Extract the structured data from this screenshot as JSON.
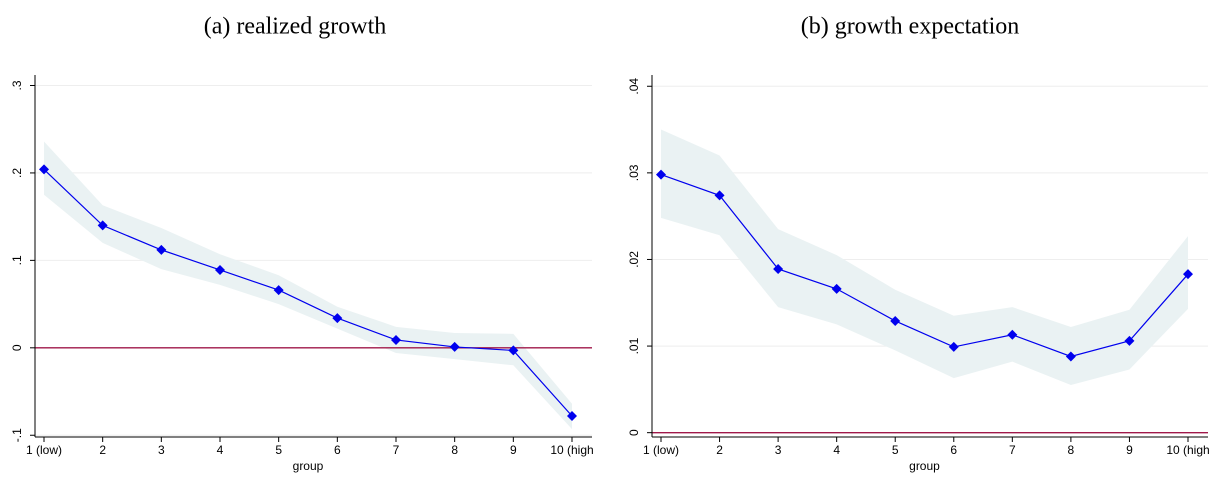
{
  "chart_data": [
    {
      "type": "line",
      "title": "(a) realized growth",
      "x_label": "group",
      "categories": [
        "1 (low)",
        "2",
        "3",
        "4",
        "5",
        "6",
        "7",
        "8",
        "9",
        "10 (high"
      ],
      "series": [
        {
          "color": "#0000ee",
          "values": [
            0.204,
            0.14,
            0.112,
            0.089,
            0.066,
            0.034,
            0.009,
            0.001,
            -0.003,
            -0.078
          ],
          "lower": [
            0.175,
            0.12,
            0.09,
            0.072,
            0.05,
            0.022,
            -0.006,
            -0.013,
            -0.02,
            -0.093
          ],
          "upper": [
            0.236,
            0.163,
            0.137,
            0.107,
            0.083,
            0.047,
            0.024,
            0.017,
            0.016,
            -0.064
          ],
          "band_color": "#eaf2f3"
        }
      ],
      "hline": 0,
      "hline_color": "#a0184a",
      "ylim": [
        -0.102,
        0.312
      ],
      "yticks": [
        {
          "value": -0.1,
          "label": "-.1"
        },
        0,
        {
          "value": 0.1,
          "label": ".1"
        },
        {
          "value": 0.2,
          "label": ".2"
        },
        {
          "value": 0.3,
          "label": ".3"
        }
      ],
      "grid": true
    },
    {
      "type": "line",
      "title": "(b) growth expectation",
      "x_label": "group",
      "categories": [
        "1 (low)",
        "2",
        "3",
        "4",
        "5",
        "6",
        "7",
        "8",
        "9",
        "10 (high"
      ],
      "series": [
        {
          "color": "#0000ee",
          "values": [
            0.0298,
            0.0274,
            0.0189,
            0.0166,
            0.0129,
            0.0099,
            0.0113,
            0.0088,
            0.0106,
            0.0183
          ],
          "lower": [
            0.0248,
            0.0228,
            0.0145,
            0.0125,
            0.0095,
            0.0063,
            0.0082,
            0.0055,
            0.0073,
            0.0143
          ],
          "upper": [
            0.035,
            0.032,
            0.0235,
            0.0205,
            0.0165,
            0.0135,
            0.0145,
            0.0122,
            0.0142,
            0.0227
          ],
          "band_color": "#eaf2f3"
        }
      ],
      "hline": 0,
      "hline_color": "#a0184a",
      "ylim": [
        -0.0005,
        0.0413
      ],
      "yticks": [
        0,
        {
          "value": 0.01,
          "label": ".01"
        },
        {
          "value": 0.02,
          "label": ".02"
        },
        {
          "value": 0.03,
          "label": ".03"
        },
        {
          "value": 0.04,
          "label": ".04"
        }
      ],
      "grid": true
    }
  ]
}
